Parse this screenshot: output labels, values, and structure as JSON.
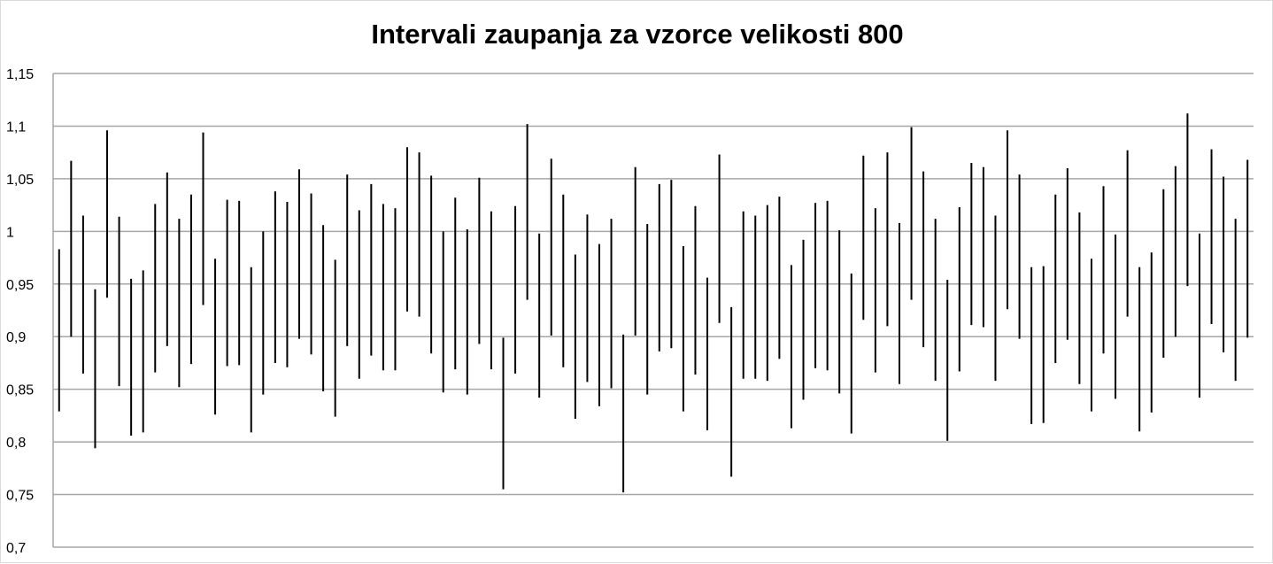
{
  "chart_data": {
    "type": "error_bar",
    "title": "Intervali zaupanja za vzorce velikosti 800",
    "xlabel": "",
    "ylabel": "",
    "ylim": [
      0.7,
      1.15
    ],
    "y_ticks": [
      "0,7",
      "0,75",
      "0,8",
      "0,85",
      "0,9",
      "0,95",
      "1",
      "1,05",
      "1,1",
      "1,15"
    ],
    "y_tick_values": [
      0.7,
      0.75,
      0.8,
      0.85,
      0.9,
      0.95,
      1.0,
      1.05,
      1.1,
      1.15
    ],
    "grid": "horizontal",
    "legend": "none",
    "colors": {
      "interval": "#000000",
      "grid": "#a6a6a6",
      "axis": "#a6a6a6"
    },
    "intervals": [
      [
        0.829,
        0.983
      ],
      [
        0.9,
        1.067
      ],
      [
        0.865,
        1.015
      ],
      [
        0.794,
        0.945
      ],
      [
        0.937,
        1.096
      ],
      [
        0.853,
        1.014
      ],
      [
        0.806,
        0.955
      ],
      [
        0.809,
        0.963
      ],
      [
        0.866,
        1.026
      ],
      [
        0.891,
        1.056
      ],
      [
        0.852,
        1.012
      ],
      [
        0.874,
        1.035
      ],
      [
        0.93,
        1.094
      ],
      [
        0.826,
        0.974
      ],
      [
        0.872,
        1.03
      ],
      [
        0.873,
        1.029
      ],
      [
        0.809,
        0.966
      ],
      [
        0.845,
        1.0
      ],
      [
        0.875,
        1.038
      ],
      [
        0.871,
        1.028
      ],
      [
        0.898,
        1.059
      ],
      [
        0.883,
        1.036
      ],
      [
        0.848,
        1.006
      ],
      [
        0.824,
        0.973
      ],
      [
        0.891,
        1.054
      ],
      [
        0.86,
        1.02
      ],
      [
        0.882,
        1.045
      ],
      [
        0.868,
        1.026
      ],
      [
        0.868,
        1.022
      ],
      [
        0.924,
        1.08
      ],
      [
        0.919,
        1.075
      ],
      [
        0.884,
        1.053
      ],
      [
        0.847,
        1.0
      ],
      [
        0.869,
        1.032
      ],
      [
        0.845,
        1.002
      ],
      [
        0.893,
        1.051
      ],
      [
        0.869,
        1.019
      ],
      [
        0.755,
        0.899
      ],
      [
        0.865,
        1.024
      ],
      [
        0.935,
        1.102
      ],
      [
        0.842,
        0.998
      ],
      [
        0.901,
        1.069
      ],
      [
        0.871,
        1.035
      ],
      [
        0.822,
        0.978
      ],
      [
        0.857,
        1.016
      ],
      [
        0.834,
        0.988
      ],
      [
        0.851,
        1.012
      ],
      [
        0.752,
        0.902
      ],
      [
        0.901,
        1.061
      ],
      [
        0.845,
        1.007
      ],
      [
        0.886,
        1.045
      ],
      [
        0.889,
        1.049
      ],
      [
        0.829,
        0.986
      ],
      [
        0.864,
        1.024
      ],
      [
        0.811,
        0.956
      ],
      [
        0.913,
        1.073
      ],
      [
        0.767,
        0.928
      ],
      [
        0.86,
        1.019
      ],
      [
        0.86,
        1.015
      ],
      [
        0.858,
        1.025
      ],
      [
        0.879,
        1.033
      ],
      [
        0.813,
        0.968
      ],
      [
        0.84,
        0.992
      ],
      [
        0.87,
        1.027
      ],
      [
        0.868,
        1.029
      ],
      [
        0.846,
        1.001
      ],
      [
        0.808,
        0.96
      ],
      [
        0.916,
        1.072
      ],
      [
        0.866,
        1.022
      ],
      [
        0.91,
        1.075
      ],
      [
        0.855,
        1.008
      ],
      [
        0.935,
        1.099
      ],
      [
        0.89,
        1.057
      ],
      [
        0.858,
        1.012
      ],
      [
        0.801,
        0.954
      ],
      [
        0.867,
        1.023
      ],
      [
        0.911,
        1.065
      ],
      [
        0.909,
        1.061
      ],
      [
        0.858,
        1.015
      ],
      [
        0.926,
        1.096
      ],
      [
        0.898,
        1.054
      ],
      [
        0.817,
        0.966
      ],
      [
        0.818,
        0.967
      ],
      [
        0.875,
        1.035
      ],
      [
        0.897,
        1.06
      ],
      [
        0.855,
        1.018
      ],
      [
        0.829,
        0.974
      ],
      [
        0.884,
        1.043
      ],
      [
        0.841,
        0.997
      ],
      [
        0.919,
        1.077
      ],
      [
        0.81,
        0.966
      ],
      [
        0.828,
        0.98
      ],
      [
        0.88,
        1.04
      ],
      [
        0.9,
        1.062
      ],
      [
        0.948,
        1.112
      ],
      [
        0.842,
        0.998
      ],
      [
        0.912,
        1.078
      ],
      [
        0.885,
        1.052
      ],
      [
        0.858,
        1.012
      ],
      [
        0.899,
        1.068
      ]
    ]
  }
}
